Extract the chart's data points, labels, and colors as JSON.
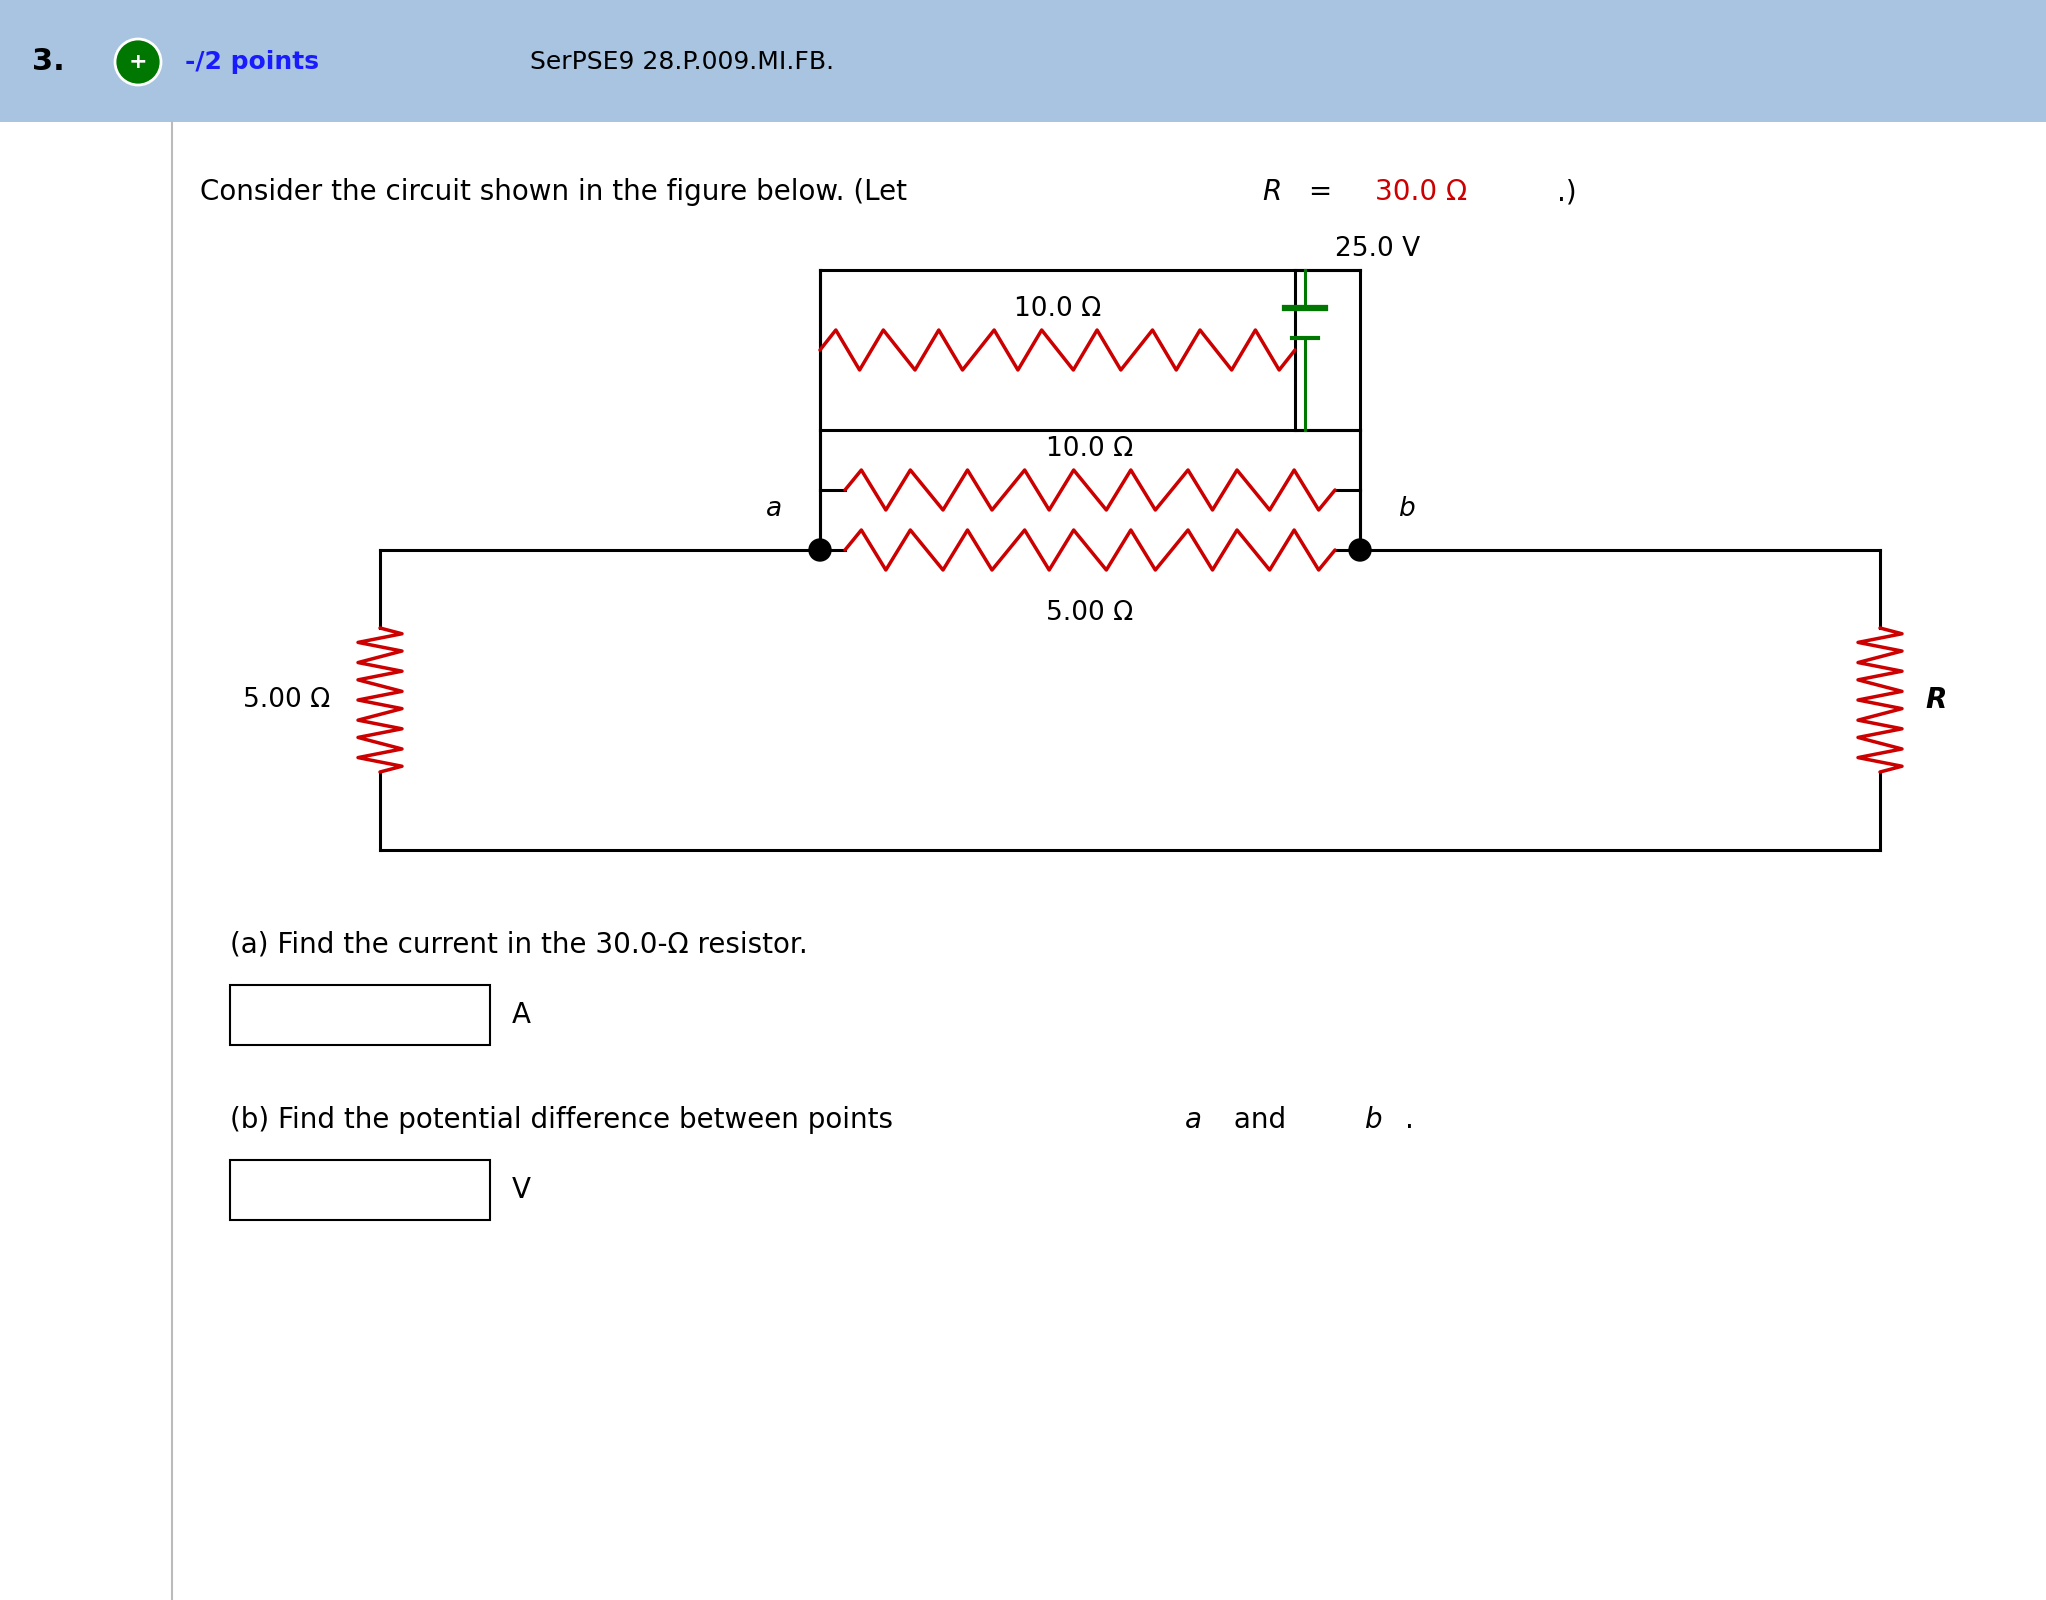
{
  "bg_color": "#ffffff",
  "header_bg": "#a8c4e0",
  "red_color": "#cc0000",
  "green_color": "#007700",
  "black_color": "#1a1a1a",
  "blue_color": "#1a1aff",
  "dark_color": "#000000",
  "header_minus_points": "-/2 points",
  "header_label": "SerPSE9 28.P.009.MI.FB.",
  "problem_R_val": "30.0 Ω",
  "voltage_label": "25.0 V",
  "res_10_top": "10.0 Ω",
  "res_10_mid": "10.0 Ω",
  "res_5_left": "5.00 Ω",
  "res_5_bot": "5.00 Ω",
  "res_R": "R",
  "label_a": "a",
  "label_b": "b",
  "question_a": "(a) Find the current in the 30.0-Ω resistor.",
  "question_b_pre": "(b) Find the potential difference between points ",
  "question_b_post": ".",
  "unit_a": "A",
  "unit_b": "V"
}
